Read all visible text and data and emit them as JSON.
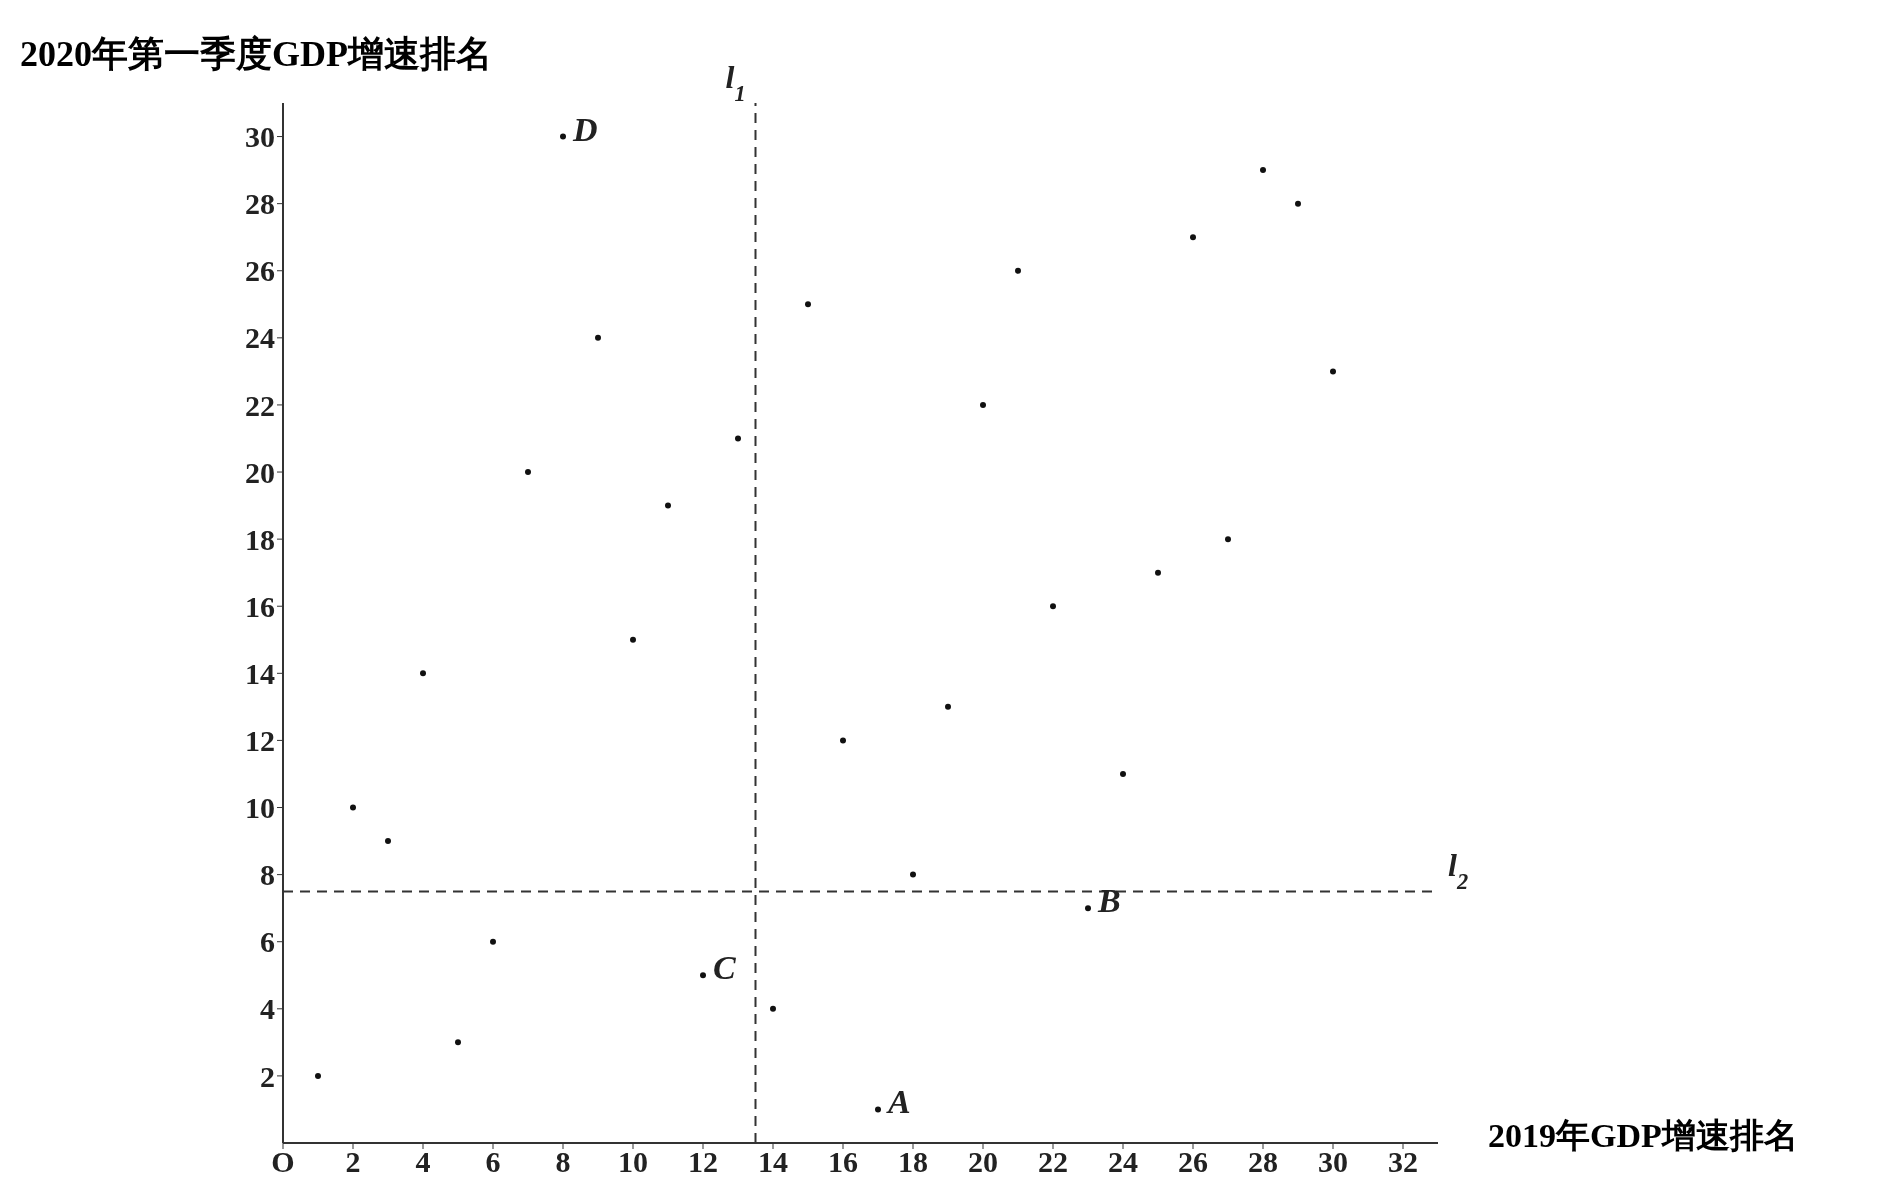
{
  "chart_data": {
    "type": "scatter",
    "xlabel": "2019年GDP增速排名",
    "ylabel": "2020年第一季度GDP增速排名",
    "x": [
      1,
      2,
      3,
      4,
      5,
      6,
      7,
      8,
      9,
      10,
      11,
      12,
      13,
      14,
      15,
      16,
      17,
      18,
      19,
      20,
      21,
      22,
      23,
      24,
      25,
      26,
      27,
      28,
      29,
      30
    ],
    "values": [
      2,
      10,
      9,
      14,
      3,
      6,
      20,
      30,
      24,
      15,
      19,
      5,
      21,
      4,
      25,
      12,
      1,
      8,
      13,
      22,
      26,
      16,
      7,
      11,
      17,
      27,
      18,
      29,
      28,
      23
    ],
    "color": "#111111",
    "marker": "circle",
    "grid": false,
    "legend": false,
    "xlim": [
      0,
      33
    ],
    "ylim": [
      0,
      31
    ],
    "xticks": [
      {
        "value": 0,
        "label": "O"
      },
      2,
      4,
      6,
      8,
      10,
      12,
      14,
      16,
      18,
      20,
      22,
      24,
      26,
      28,
      30,
      32
    ],
    "yticks": [
      2,
      4,
      6,
      8,
      10,
      12,
      14,
      16,
      18,
      20,
      22,
      24,
      26,
      28,
      30
    ],
    "ref_lines": [
      {
        "axis": "x",
        "value": 13.5,
        "label": "l$_{1}$",
        "line_style": "dashed",
        "color": "#333333"
      },
      {
        "axis": "y",
        "value": 7.5,
        "label": "l$_{2}$",
        "line_style": "dashed",
        "color": "#333333"
      }
    ],
    "annotations": [
      {
        "text": "D",
        "x": 8,
        "y": 30
      },
      {
        "text": "A",
        "x": 17,
        "y": 1
      },
      {
        "text": "B",
        "x": 23,
        "y": 7
      },
      {
        "text": "C",
        "x": 12,
        "y": 5
      }
    ]
  }
}
